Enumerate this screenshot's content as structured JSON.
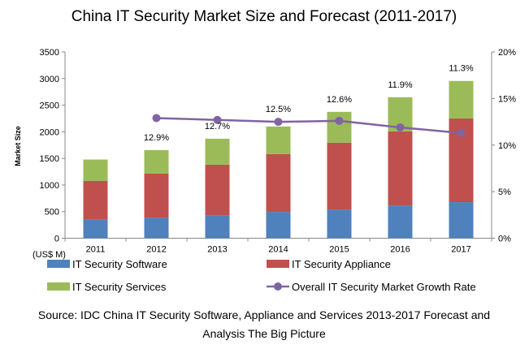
{
  "chart_data": {
    "type": "bar",
    "stacked": true,
    "title": "China IT Security Market Size and Forecast (2011-2017)",
    "ylabel": "Market Size",
    "yunit": "(US$ M)",
    "ylim": [
      0,
      3500
    ],
    "yticks": [
      0,
      500,
      1000,
      1500,
      2000,
      2500,
      3000,
      3500
    ],
    "y2lim": [
      0,
      20
    ],
    "y2ticks": [
      "0%",
      "5%",
      "10%",
      "15%",
      "20%"
    ],
    "grid": false,
    "legend_position": "bottom",
    "categories": [
      "2011",
      "2012",
      "2013",
      "2014",
      "2015",
      "2016",
      "2017"
    ],
    "series": [
      {
        "name": "IT Security Software",
        "color": "#4f81bd",
        "values": [
          346,
          387,
          433,
          494,
          540,
          616,
          678
        ]
      },
      {
        "name": "IT Security Appliance",
        "color": "#c0504d",
        "values": [
          729,
          826,
          948,
          1085,
          1253,
          1391,
          1574
        ]
      },
      {
        "name": "IT Security Services",
        "color": "#9bbb59",
        "values": [
          403,
          443,
          489,
          520,
          581,
          642,
          703
        ]
      }
    ],
    "line_series": {
      "name": "Overall IT Security Market Growth Rate",
      "color": "#8064a2",
      "axis": "right",
      "values": [
        null,
        12.9,
        12.7,
        12.5,
        12.6,
        11.9,
        11.3
      ],
      "labels": [
        "",
        "12.9%",
        "12.7%",
        "12.5%",
        "12.6%",
        "11.9%",
        "11.3%"
      ]
    },
    "source": [
      "Source: IDC China IT Security Software, Appliance and Services 2013-2017 Forecast and",
      "Analysis The Big Picture"
    ]
  }
}
